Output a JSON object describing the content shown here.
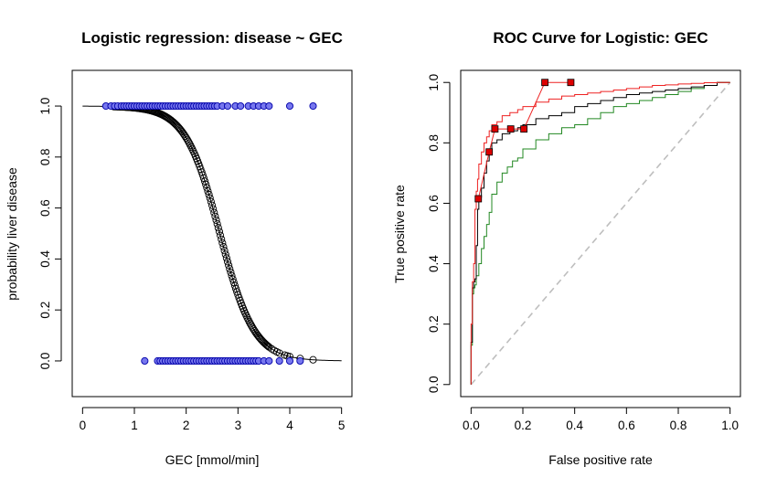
{
  "chart_data": [
    {
      "type": "scatter",
      "title": "Logistic regression: disease ~ GEC",
      "xlabel": "GEC [mmol/min]",
      "ylabel": "probability liver disease",
      "xlim": [
        -0.2,
        5.2
      ],
      "ylim": [
        -0.14,
        1.14
      ],
      "xticks": [
        "0",
        "1",
        "2",
        "3",
        "4",
        "5"
      ],
      "yticks": [
        "0.0",
        "0.2",
        "0.4",
        "0.6",
        "0.8",
        "1.0"
      ],
      "grid": false,
      "legend": "none",
      "colors": {
        "observed_fill": "#7777ee",
        "observed_stroke": "#0000aa",
        "fitted_stroke": "#000000"
      },
      "logistic_fit": {
        "midpoint": 2.65,
        "slope": 3.0,
        "x_range": [
          0,
          5
        ]
      },
      "observed_disease_1": [
        0.45,
        0.55,
        0.62,
        0.68,
        0.75,
        0.8,
        0.85,
        0.9,
        0.95,
        1.0,
        1.05,
        1.1,
        1.15,
        1.2,
        1.25,
        1.3,
        1.35,
        1.4,
        1.45,
        1.5,
        1.55,
        1.6,
        1.65,
        1.7,
        1.75,
        1.8,
        1.85,
        1.9,
        1.95,
        2.0,
        2.05,
        2.1,
        2.15,
        2.2,
        2.25,
        2.3,
        2.35,
        2.4,
        2.45,
        2.5,
        2.55,
        2.6,
        2.7,
        2.8,
        2.95,
        3.05,
        3.2,
        3.3,
        3.4,
        3.5,
        3.6,
        4.0,
        4.45
      ],
      "observed_disease_0": [
        1.2,
        1.45,
        1.5,
        1.55,
        1.6,
        1.65,
        1.7,
        1.75,
        1.8,
        1.85,
        1.9,
        1.95,
        2.0,
        2.05,
        2.1,
        2.15,
        2.2,
        2.25,
        2.3,
        2.35,
        2.4,
        2.45,
        2.5,
        2.55,
        2.6,
        2.65,
        2.7,
        2.75,
        2.8,
        2.85,
        2.9,
        2.95,
        3.0,
        3.05,
        3.1,
        3.15,
        3.2,
        3.25,
        3.3,
        3.35,
        3.4,
        3.5,
        3.6,
        3.8,
        4.0,
        4.2
      ],
      "fitted_points_x": [
        0.6,
        0.62,
        0.64,
        0.66,
        0.68,
        0.7,
        0.72,
        0.74,
        0.76,
        0.78,
        0.8,
        0.82,
        0.84,
        0.86,
        0.88,
        0.9,
        0.92,
        0.94,
        0.96,
        0.98,
        1.0,
        1.02,
        1.04,
        1.06,
        1.08,
        1.1,
        1.12,
        1.14,
        1.16,
        1.18,
        1.2,
        1.22,
        1.24,
        1.26,
        1.28,
        1.3,
        1.32,
        1.34,
        1.36,
        1.38,
        1.4,
        1.42,
        1.44,
        1.46,
        1.48,
        1.5,
        1.52,
        1.54,
        1.56,
        1.58,
        1.6,
        1.62,
        1.64,
        1.66,
        1.68,
        1.7,
        1.72,
        1.74,
        1.76,
        1.78,
        1.8,
        1.82,
        1.84,
        1.86,
        1.88,
        1.9,
        1.92,
        1.94,
        1.96,
        1.98,
        2.0,
        2.02,
        2.04,
        2.06,
        2.08,
        2.1,
        2.12,
        2.14,
        2.16,
        2.18,
        2.2,
        2.22,
        2.24,
        2.26,
        2.28,
        2.3,
        2.32,
        2.34,
        2.36,
        2.38,
        2.4,
        2.42,
        2.44,
        2.46,
        2.48,
        2.5,
        2.52,
        2.54,
        2.56,
        2.58,
        2.6,
        2.62,
        2.64,
        2.66,
        2.68,
        2.7,
        2.72,
        2.74,
        2.76,
        2.78,
        2.8,
        2.82,
        2.84,
        2.86,
        2.88,
        2.9,
        2.92,
        2.94,
        2.96,
        2.98,
        3.0,
        3.02,
        3.04,
        3.06,
        3.08,
        3.1,
        3.12,
        3.14,
        3.16,
        3.18,
        3.2,
        3.22,
        3.24,
        3.26,
        3.28,
        3.3,
        3.32,
        3.34,
        3.36,
        3.38,
        3.4,
        3.42,
        3.44,
        3.46,
        3.48,
        3.5,
        3.52,
        3.54,
        3.56,
        3.58,
        3.6,
        3.65,
        3.7,
        3.75,
        3.8,
        3.9,
        3.95,
        4.0,
        4.2,
        4.45
      ]
    },
    {
      "type": "line",
      "title": "ROC Curve for Logistic:  GEC",
      "xlabel": "False positive rate",
      "ylabel": "True positive rate",
      "xlim": [
        -0.04,
        1.04
      ],
      "ylim": [
        -0.04,
        1.04
      ],
      "xticks": [
        "0.0",
        "0.2",
        "0.4",
        "0.6",
        "0.8",
        "1.0"
      ],
      "yticks": [
        "0.0",
        "0.2",
        "0.4",
        "0.6",
        "0.8",
        "1.0"
      ],
      "grid": false,
      "legend": "none",
      "reference_line": {
        "x": [
          0,
          1
        ],
        "y": [
          0,
          1
        ],
        "color": "#bebebe"
      },
      "series": [
        {
          "color": "#000000",
          "kind": "step",
          "x": [
            0,
            0.005,
            0.01,
            0.015,
            0.02,
            0.025,
            0.03,
            0.04,
            0.05,
            0.06,
            0.07,
            0.08,
            0.1,
            0.12,
            0.15,
            0.18,
            0.2,
            0.25,
            0.3,
            0.35,
            0.4,
            0.45,
            0.5,
            0.55,
            0.6,
            0.65,
            0.7,
            0.75,
            0.8,
            0.85,
            0.9,
            0.95,
            1.0
          ],
          "y": [
            0,
            0.14,
            0.32,
            0.34,
            0.35,
            0.46,
            0.58,
            0.62,
            0.65,
            0.7,
            0.74,
            0.77,
            0.8,
            0.81,
            0.83,
            0.84,
            0.85,
            0.86,
            0.88,
            0.89,
            0.9,
            0.92,
            0.93,
            0.94,
            0.95,
            0.96,
            0.965,
            0.97,
            0.975,
            0.98,
            0.985,
            0.99,
            1.0
          ]
        },
        {
          "color": "#ee2222",
          "kind": "step",
          "x": [
            0,
            0.005,
            0.01,
            0.015,
            0.02,
            0.025,
            0.03,
            0.04,
            0.05,
            0.06,
            0.07,
            0.08,
            0.1,
            0.12,
            0.15,
            0.18,
            0.2,
            0.25,
            0.3,
            0.35,
            0.4,
            0.45,
            0.5,
            0.55,
            0.6,
            0.65,
            0.7,
            0.75,
            0.8,
            0.85,
            0.9,
            0.95,
            1.0
          ],
          "y": [
            0,
            0.2,
            0.34,
            0.4,
            0.58,
            0.64,
            0.68,
            0.73,
            0.77,
            0.8,
            0.82,
            0.84,
            0.86,
            0.87,
            0.89,
            0.9,
            0.91,
            0.92,
            0.935,
            0.945,
            0.955,
            0.96,
            0.965,
            0.97,
            0.975,
            0.98,
            0.985,
            0.99,
            0.992,
            0.995,
            0.997,
            0.999,
            1.0
          ]
        },
        {
          "color": "#228822",
          "kind": "step",
          "x": [
            0,
            0.005,
            0.01,
            0.015,
            0.02,
            0.03,
            0.04,
            0.05,
            0.06,
            0.07,
            0.08,
            0.1,
            0.12,
            0.14,
            0.16,
            0.18,
            0.2,
            0.25,
            0.3,
            0.35,
            0.4,
            0.45,
            0.5,
            0.55,
            0.6,
            0.65,
            0.7,
            0.75,
            0.8,
            0.85,
            0.9,
            0.95,
            1.0
          ],
          "y": [
            0,
            0.13,
            0.3,
            0.32,
            0.33,
            0.36,
            0.4,
            0.45,
            0.49,
            0.53,
            0.57,
            0.63,
            0.67,
            0.7,
            0.72,
            0.74,
            0.75,
            0.78,
            0.81,
            0.83,
            0.85,
            0.86,
            0.88,
            0.9,
            0.92,
            0.93,
            0.94,
            0.95,
            0.96,
            0.97,
            0.98,
            0.99,
            1.0
          ]
        },
        {
          "color": "#ee2222",
          "kind": "points",
          "marker_fill": "#dd0000",
          "x": [
            0.028,
            0.07,
            0.092,
            0.153,
            0.204,
            0.285,
            0.385
          ],
          "y": [
            0.615,
            0.77,
            0.846,
            0.846,
            0.846,
            1.0,
            1.0
          ]
        }
      ]
    }
  ]
}
